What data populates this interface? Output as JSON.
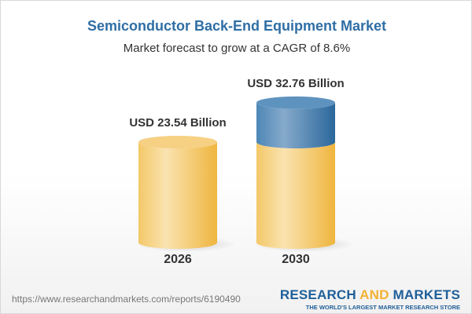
{
  "title": "Semiconductor Back-End Equipment Market",
  "subtitle": "Market forecast to grow at a CAGR of 8.6%",
  "chart_data": {
    "type": "bar",
    "style": "3d-cylinder",
    "categories": [
      "2026",
      "2030"
    ],
    "values": [
      23.54,
      32.76
    ],
    "data_labels": [
      "USD 23.54 Billion",
      "USD 32.76 Billion"
    ],
    "unit": "USD Billion",
    "colors": {
      "base": "#f2c15a",
      "growth": "#3f7eb0"
    }
  },
  "footer": {
    "url": "https://www.researchandmarkets.com/reports/6190490",
    "logo_part1": "RESEARCH ",
    "logo_part2": "AND",
    "logo_part3": " MARKETS",
    "tagline": "THE WORLD'S LARGEST MARKET RESEARCH STORE"
  }
}
